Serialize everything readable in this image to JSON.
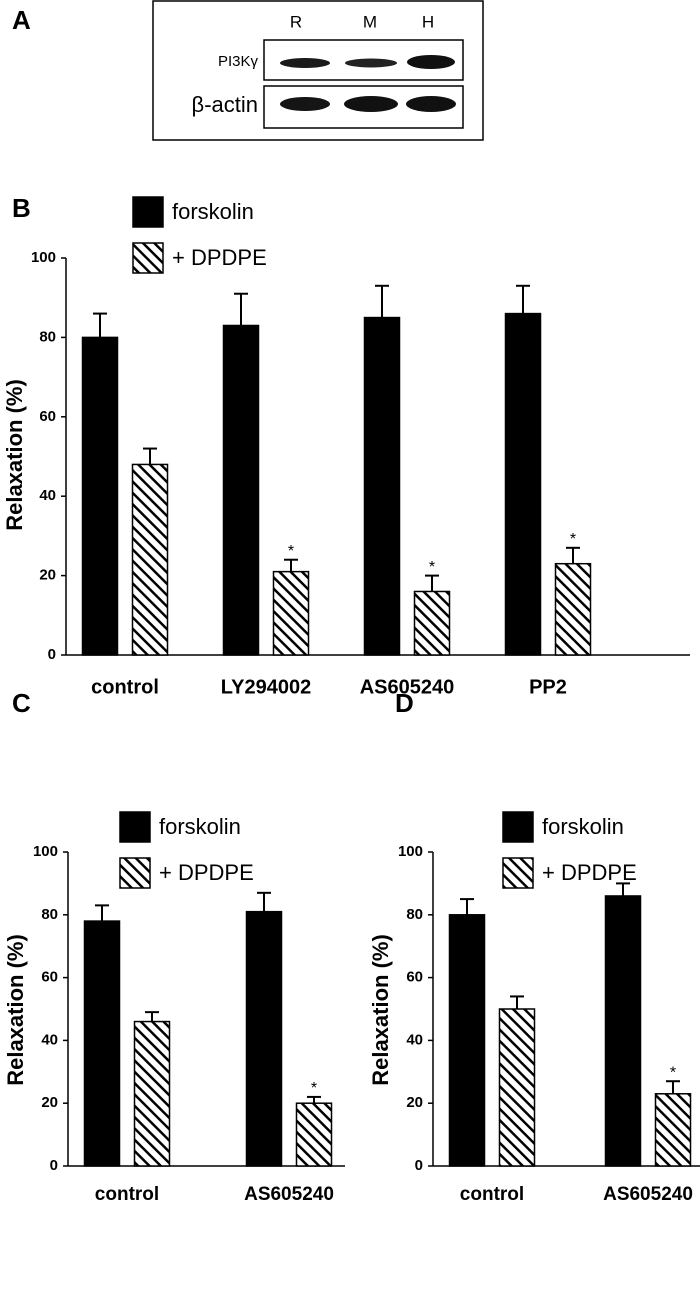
{
  "blot": {
    "panel_label": "A",
    "lanes": [
      "R",
      "M",
      "H"
    ],
    "rows": [
      "PI3Kγ",
      "β-actin"
    ]
  },
  "chart_data": [
    {
      "type": "bar",
      "panel_label": "B",
      "ylabel": "Relaxation (%)",
      "categories": [
        "control",
        "LY294002",
        "AS605240",
        "PP2"
      ],
      "series": [
        {
          "name": "forskolin",
          "color": "#000000",
          "pattern": "solid",
          "values": [
            80,
            83,
            85,
            86
          ],
          "errors": [
            6,
            8,
            8,
            7
          ],
          "significance": [
            null,
            null,
            null,
            null
          ]
        },
        {
          "name": "+ DPDPE",
          "color": "#000000",
          "pattern": "hatch",
          "values": [
            48,
            21,
            16,
            23
          ],
          "errors": [
            4,
            3,
            4,
            4
          ],
          "significance": [
            null,
            "*",
            "*",
            "*"
          ]
        }
      ],
      "ylim": [
        0,
        100
      ],
      "yticks": [
        0,
        20,
        40,
        60,
        80,
        100
      ],
      "legend": "upper left",
      "grid": false
    },
    {
      "type": "bar",
      "panel_label": "C",
      "ylabel": "Relaxation (%)",
      "categories": [
        "control",
        "AS605240"
      ],
      "series": [
        {
          "name": "forskolin",
          "color": "#000000",
          "pattern": "solid",
          "values": [
            78,
            81
          ],
          "errors": [
            5,
            6
          ],
          "significance": [
            null,
            null
          ]
        },
        {
          "name": "+ DPDPE",
          "color": "#000000",
          "pattern": "hatch",
          "values": [
            46,
            20
          ],
          "errors": [
            3,
            2
          ],
          "significance": [
            null,
            "*"
          ]
        }
      ],
      "ylim": [
        0,
        100
      ],
      "yticks": [
        0,
        20,
        40,
        60,
        80,
        100
      ],
      "legend": "upper left",
      "grid": false
    },
    {
      "type": "bar",
      "panel_label": "D",
      "ylabel": "Relaxation (%)",
      "categories": [
        "control",
        "AS605240"
      ],
      "series": [
        {
          "name": "forskolin",
          "color": "#000000",
          "pattern": "solid",
          "values": [
            80,
            86
          ],
          "errors": [
            5,
            4
          ],
          "significance": [
            null,
            null
          ]
        },
        {
          "name": "+ DPDPE",
          "color": "#000000",
          "pattern": "hatch",
          "values": [
            50,
            23
          ],
          "errors": [
            4,
            4
          ],
          "significance": [
            null,
            "*"
          ]
        }
      ],
      "ylim": [
        0,
        100
      ],
      "yticks": [
        0,
        20,
        40,
        60,
        80,
        100
      ],
      "legend": "upper left",
      "grid": false
    }
  ]
}
